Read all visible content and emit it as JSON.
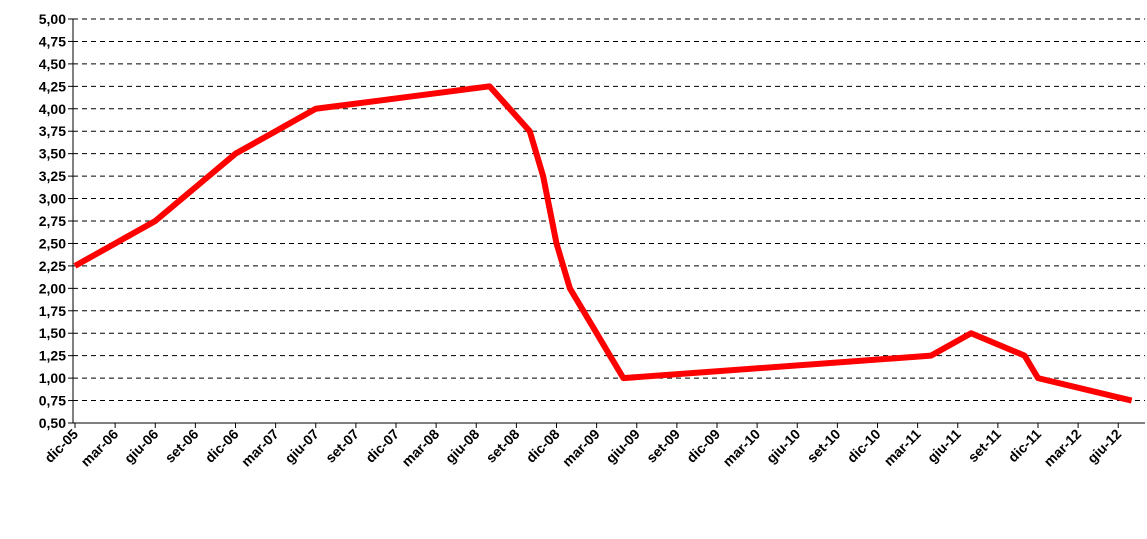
{
  "chart_data": {
    "type": "line",
    "x": [
      "2005-12",
      "2006-03",
      "2006-06",
      "2006-08",
      "2006-10",
      "2006-12",
      "2007-03",
      "2007-06",
      "2008-07",
      "2008-10",
      "2008-11",
      "2008-12",
      "2009-01",
      "2009-03",
      "2009-04",
      "2009-05",
      "2011-04",
      "2011-07",
      "2011-11",
      "2011-12",
      "2012-07"
    ],
    "series": [
      {
        "color": "#ff0000",
        "values": [
          2.25,
          2.5,
          2.75,
          3.0,
          3.25,
          3.5,
          3.75,
          4.0,
          4.25,
          3.75,
          3.25,
          2.5,
          2.0,
          1.5,
          1.25,
          1.0,
          1.25,
          1.5,
          1.25,
          1.0,
          0.75
        ]
      }
    ],
    "xlim": [
      "2005-12",
      "2012-08"
    ],
    "xticks": [
      {
        "value": "2005-12",
        "label": "dic-05"
      },
      {
        "value": "2006-03",
        "label": "mar-06"
      },
      {
        "value": "2006-06",
        "label": "giu-06"
      },
      {
        "value": "2006-09",
        "label": "set-06"
      },
      {
        "value": "2006-12",
        "label": "dic-06"
      },
      {
        "value": "2007-03",
        "label": "mar-07"
      },
      {
        "value": "2007-06",
        "label": "giu-07"
      },
      {
        "value": "2007-09",
        "label": "set-07"
      },
      {
        "value": "2007-12",
        "label": "dic-07"
      },
      {
        "value": "2008-03",
        "label": "mar-08"
      },
      {
        "value": "2008-06",
        "label": "giu-08"
      },
      {
        "value": "2008-09",
        "label": "set-08"
      },
      {
        "value": "2008-12",
        "label": "dic-08"
      },
      {
        "value": "2009-03",
        "label": "mar-09"
      },
      {
        "value": "2009-06",
        "label": "giu-09"
      },
      {
        "value": "2009-09",
        "label": "set-09"
      },
      {
        "value": "2009-12",
        "label": "dic-09"
      },
      {
        "value": "2010-03",
        "label": "mar-10"
      },
      {
        "value": "2010-06",
        "label": "giu-10"
      },
      {
        "value": "2010-09",
        "label": "set-10"
      },
      {
        "value": "2010-12",
        "label": "dic-10"
      },
      {
        "value": "2011-03",
        "label": "mar-11"
      },
      {
        "value": "2011-06",
        "label": "giu-11"
      },
      {
        "value": "2011-09",
        "label": "set-11"
      },
      {
        "value": "2011-12",
        "label": "dic-11"
      },
      {
        "value": "2012-03",
        "label": "mar-12"
      },
      {
        "value": "2012-06",
        "label": "giu-12"
      }
    ],
    "ylim": [
      0.5,
      5.0
    ],
    "yticks": [
      {
        "value": 0.5,
        "label": "0,50"
      },
      {
        "value": 0.75,
        "label": "0,75"
      },
      {
        "value": 1.0,
        "label": "1,00"
      },
      {
        "value": 1.25,
        "label": "1,25"
      },
      {
        "value": 1.5,
        "label": "1,50"
      },
      {
        "value": 1.75,
        "label": "1,75"
      },
      {
        "value": 2.0,
        "label": "2,00"
      },
      {
        "value": 2.25,
        "label": "2,25"
      },
      {
        "value": 2.5,
        "label": "2,50"
      },
      {
        "value": 2.75,
        "label": "2,75"
      },
      {
        "value": 3.0,
        "label": "3,00"
      },
      {
        "value": 3.25,
        "label": "3,25"
      },
      {
        "value": 3.5,
        "label": "3,50"
      },
      {
        "value": 3.75,
        "label": "3,75"
      },
      {
        "value": 4.0,
        "label": "4,00"
      },
      {
        "value": 4.25,
        "label": "4,25"
      },
      {
        "value": 4.5,
        "label": "4,50"
      },
      {
        "value": 4.75,
        "label": "4,75"
      },
      {
        "value": 5.0,
        "label": "5,00"
      }
    ],
    "grid": true
  }
}
